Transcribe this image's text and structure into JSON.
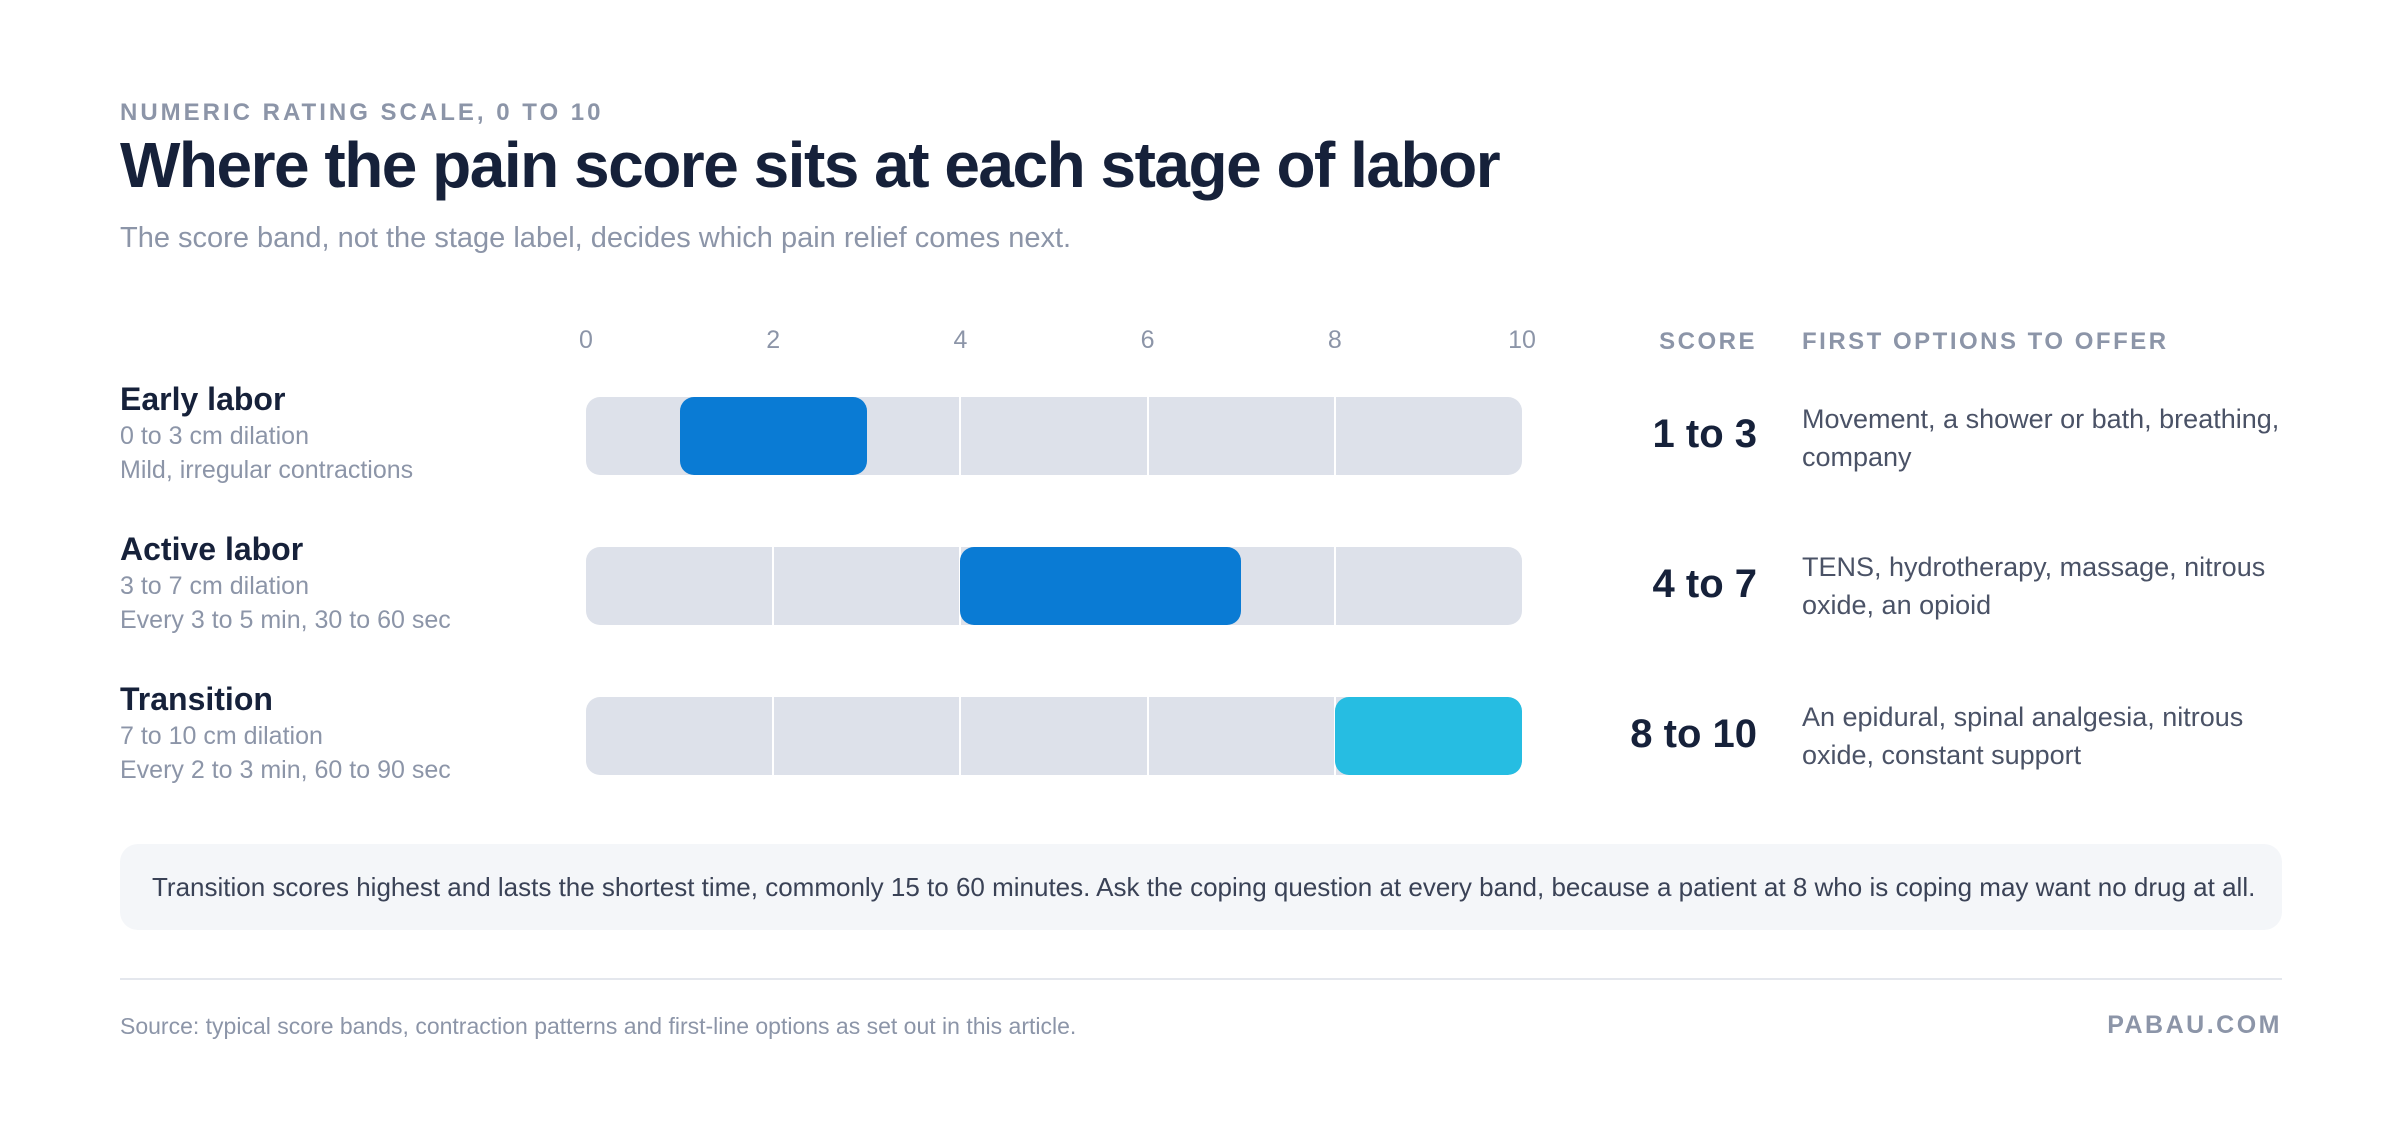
{
  "header": {
    "eyebrow": "NUMERIC RATING SCALE, 0 TO 10",
    "title": "Where the pain score sits at each stage of labor",
    "subtitle": "The score band, not the stage label, decides which pain relief comes next."
  },
  "columns": {
    "score_heading": "SCORE",
    "options_heading": "FIRST OPTIONS TO OFFER"
  },
  "chart_data": {
    "type": "bar",
    "orientation": "horizontal-range",
    "xlim": [
      0,
      10
    ],
    "ticks": [
      "0",
      "2",
      "4",
      "6",
      "8",
      "10"
    ],
    "grid": true,
    "rows": [
      {
        "name": "Early labor",
        "dilation": "0 to 3 cm dilation",
        "contractions": "Mild, irregular contractions",
        "range": [
          1,
          3
        ],
        "score": "1 to 3",
        "options": "Movement, a shower or bath, breathing, company",
        "color": "#0a7bd4"
      },
      {
        "name": "Active labor",
        "dilation": "3 to 7 cm dilation",
        "contractions": "Every 3 to 5 min, 30 to 60 sec",
        "range": [
          4,
          7
        ],
        "score": "4 to 7",
        "options": "TENS, hydrotherapy, massage, nitrous oxide, an opioid",
        "color": "#0a7bd4"
      },
      {
        "name": "Transition",
        "dilation": "7 to 10 cm dilation",
        "contractions": "Every 2 to 3 min, 60 to 90 sec",
        "range": [
          8,
          10
        ],
        "score": "8 to 10",
        "options": "An epidural, spinal analgesia, nitrous oxide, constant support",
        "color": "#26bde2"
      }
    ]
  },
  "note": "Transition scores highest and lasts the shortest time, commonly 15 to 60 minutes. Ask the coping question at every band, because a patient at 8 who is coping may want no drug at all.",
  "footer": {
    "source": "Source: typical score bands, contraction patterns and first-line options as set out in this article.",
    "brand": "PABAU.COM"
  }
}
